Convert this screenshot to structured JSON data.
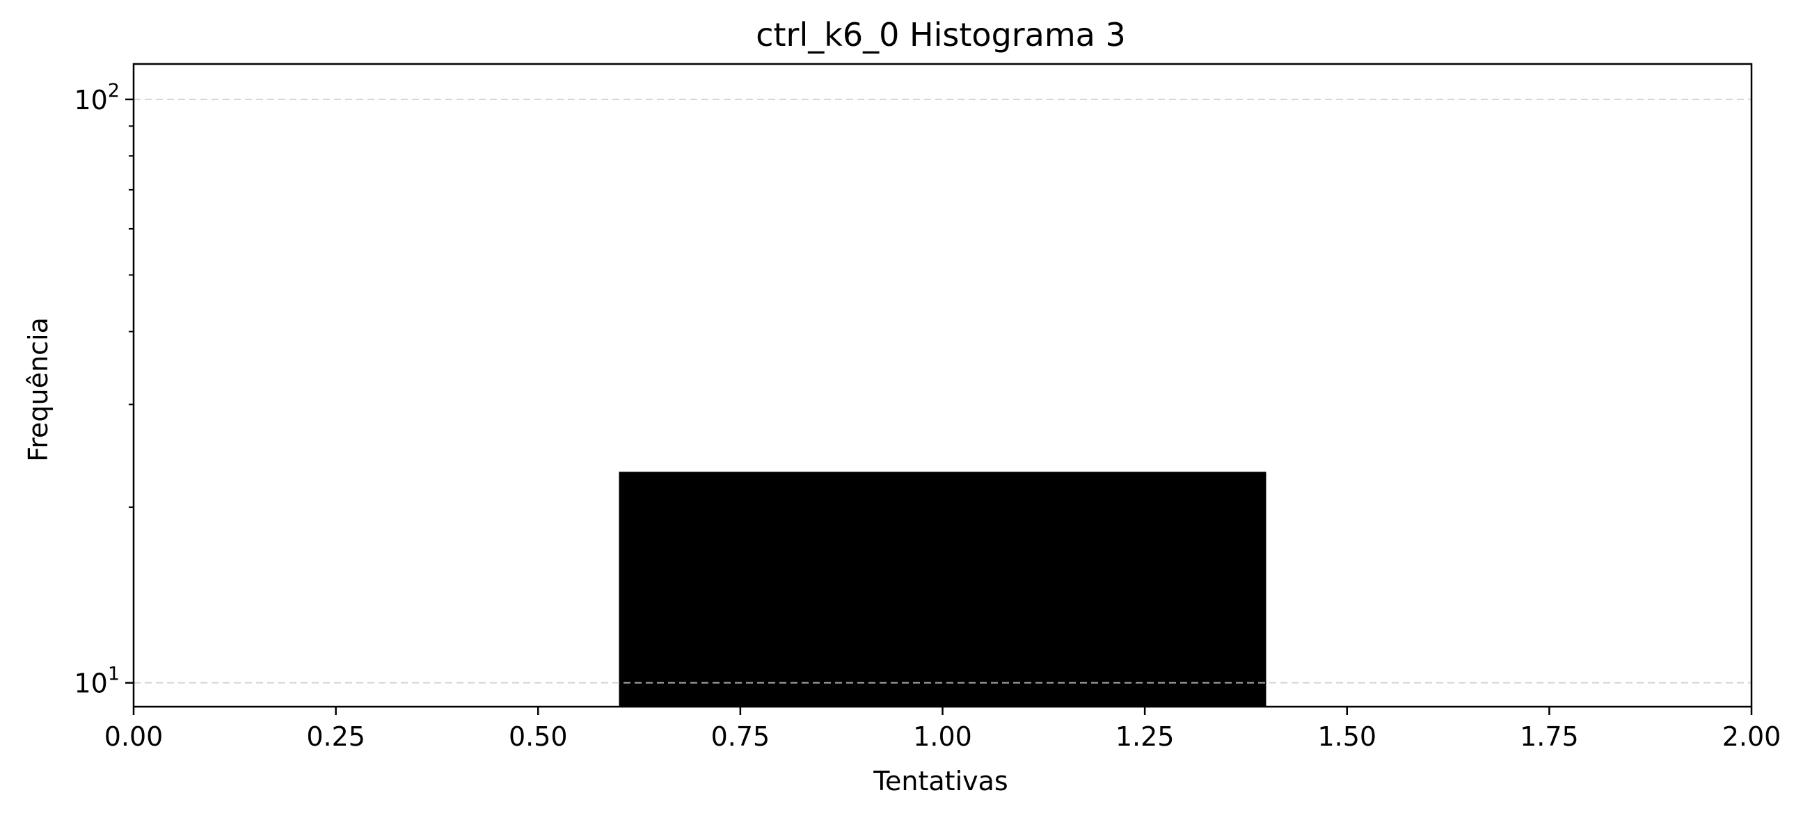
{
  "chart_data": {
    "type": "bar",
    "title": "ctrl_k6_0 Histograma 3",
    "xlabel": "Tentativas",
    "ylabel": "Frequência",
    "x_scale": "linear",
    "y_scale": "log",
    "xlim": [
      0.0,
      2.0
    ],
    "ylim": [
      9.1,
      115
    ],
    "x_ticks": [
      0.0,
      0.25,
      0.5,
      0.75,
      1.0,
      1.25,
      1.5,
      1.75,
      2.0
    ],
    "x_tick_labels": [
      "0.00",
      "0.25",
      "0.50",
      "0.75",
      "1.00",
      "1.25",
      "1.50",
      "1.75",
      "2.00"
    ],
    "y_ticks": [
      10,
      100
    ],
    "y_tick_labels": [
      {
        "base": "10",
        "exponent": "1"
      },
      {
        "base": "10",
        "exponent": "2"
      }
    ],
    "bars": [
      {
        "x_start": 0.6,
        "x_end": 1.4,
        "value": 23
      }
    ],
    "bar_color": "#000000",
    "grid": {
      "axis": "y",
      "style": "dashed",
      "color": "#cccccc"
    }
  }
}
